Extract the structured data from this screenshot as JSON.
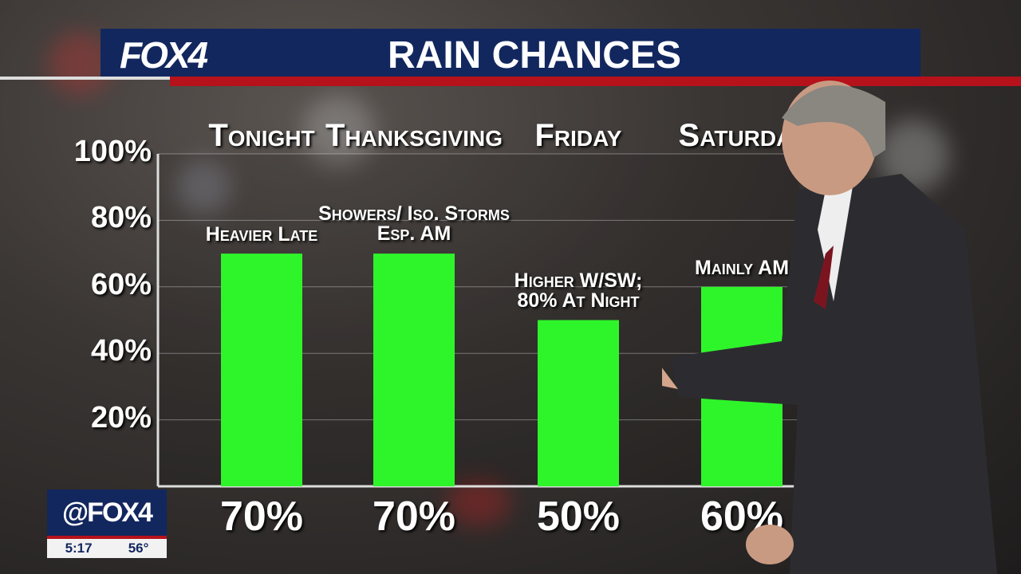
{
  "header": {
    "logo": "FOX4",
    "title": "RAIN CHANCES"
  },
  "bug": {
    "logo": "@FOX4",
    "time": "5:17",
    "temp": "56°"
  },
  "colors": {
    "bar": "#2ef52a",
    "navy": "#12275e",
    "red": "#b5121b"
  },
  "chart_data": {
    "type": "bar",
    "title": "RAIN CHANCES",
    "categories": [
      "Tonight",
      "Thanksgiving",
      "Friday",
      "Saturday"
    ],
    "values": [
      70,
      70,
      50,
      60
    ],
    "value_labels": [
      "70%",
      "70%",
      "50%",
      "60%"
    ],
    "annotations": [
      "Heavier Late",
      "Showers/ Iso. Storms\nEsp. AM",
      "Higher W/SW;\n80% At Night",
      "Mainly AM"
    ],
    "yticks": [
      "20%",
      "40%",
      "60%",
      "80%",
      "100%"
    ],
    "ylim": [
      0,
      100
    ],
    "grid": true
  }
}
